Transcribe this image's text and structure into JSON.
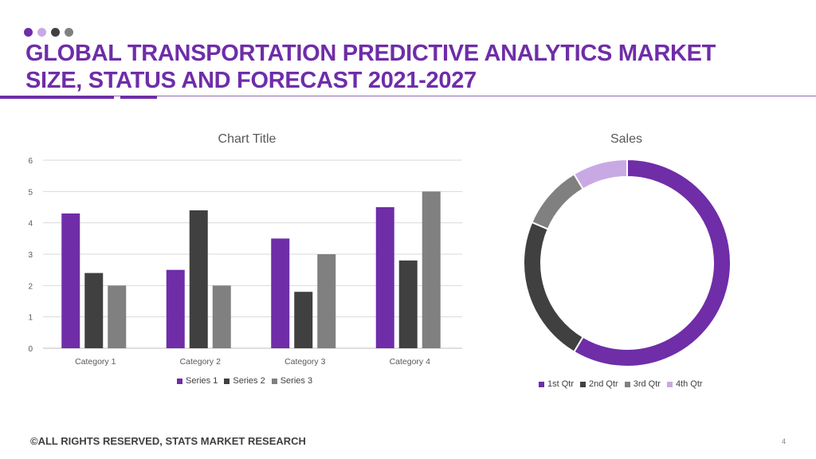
{
  "header": {
    "title_line1": "GLOBAL TRANSPORTATION PREDICTIVE ANALYTICS MARKET",
    "title_line2": "SIZE, STATUS AND FORECAST 2021-2027",
    "dot_colors": [
      "#6f2da8",
      "#c9a9e4",
      "#404040",
      "#808080"
    ]
  },
  "footer": {
    "copyright": "©ALL RIGHTS RESERVED, STATS MARKET RESEARCH",
    "page_number": "4"
  },
  "colors": {
    "accent": "#6f2da8",
    "dark": "#404040",
    "gray": "#808080",
    "light_purple": "#c9a9e4"
  },
  "chart_data": [
    {
      "type": "bar",
      "title": "Chart Title",
      "categories": [
        "Category 1",
        "Category 2",
        "Category 3",
        "Category 4"
      ],
      "series": [
        {
          "name": "Series 1",
          "values": [
            4.3,
            2.5,
            3.5,
            4.5
          ],
          "color": "#6f2da8"
        },
        {
          "name": "Series 2",
          "values": [
            2.4,
            4.4,
            1.8,
            2.8
          ],
          "color": "#404040"
        },
        {
          "name": "Series 3",
          "values": [
            2,
            2,
            3,
            5
          ],
          "color": "#808080"
        }
      ],
      "ylim": [
        0,
        6
      ],
      "yticks": [
        "0",
        "1",
        "2",
        "3",
        "4",
        "5",
        "6"
      ],
      "grid": true,
      "legend": "bottom"
    },
    {
      "type": "pie",
      "title": "Sales",
      "labels": [
        "1st Qtr",
        "2nd Qtr",
        "3rd Qtr",
        "4th Qtr"
      ],
      "values": [
        8.2,
        3.2,
        1.4,
        1.2
      ],
      "colors": [
        "#6f2da8",
        "#404040",
        "#808080",
        "#c9a9e4"
      ],
      "donut": true,
      "legend": "bottom"
    }
  ]
}
